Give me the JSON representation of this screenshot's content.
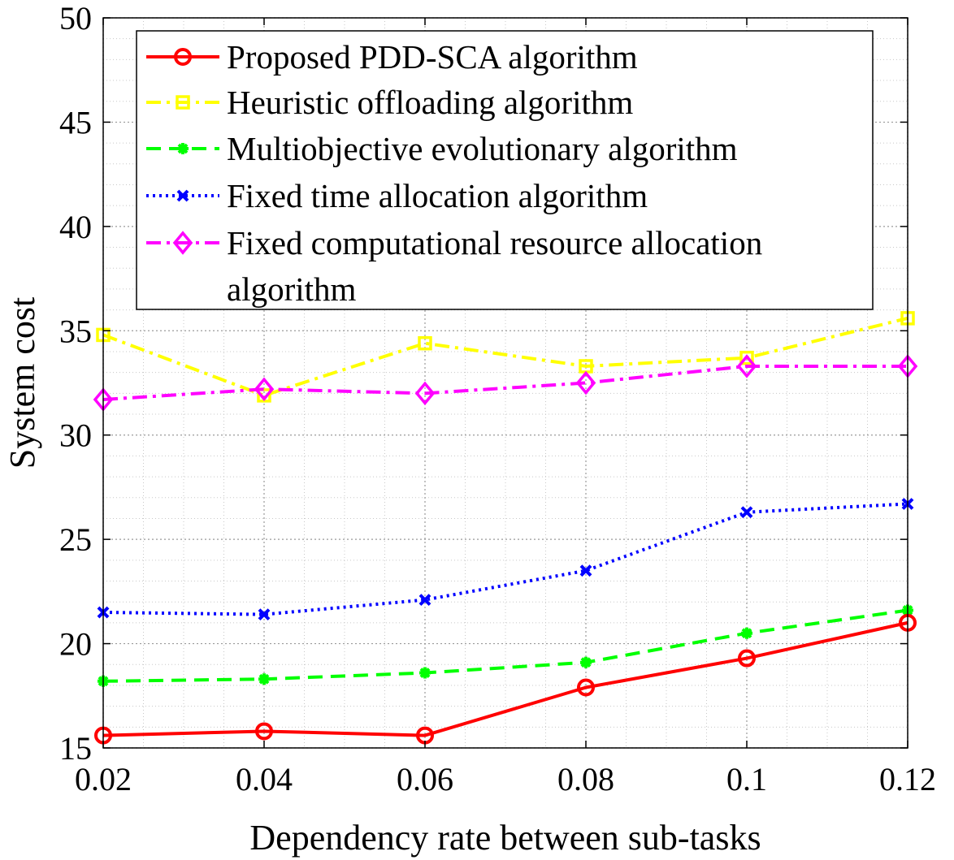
{
  "chart_data": {
    "type": "line",
    "title": "",
    "xlabel": "Dependency rate between sub-tasks",
    "ylabel": "System cost",
    "x": [
      0.02,
      0.04,
      0.06,
      0.08,
      0.1,
      0.12
    ],
    "x_tick_labels": [
      "0.02",
      "0.04",
      "0.06",
      "0.08",
      "0.1",
      "0.12"
    ],
    "xlim": [
      0.02,
      0.12
    ],
    "ylim": [
      15,
      50
    ],
    "y_ticks": [
      15,
      20,
      25,
      30,
      35,
      40,
      45,
      50
    ],
    "y_tick_labels": [
      "15",
      "20",
      "25",
      "30",
      "35",
      "40",
      "45",
      "50"
    ],
    "grid": true,
    "legend_position": "top-right",
    "series": [
      {
        "name": "Proposed PDD-SCA algorithm",
        "legend_lines": [
          "Proposed PDD-SCA algorithm"
        ],
        "values": [
          15.6,
          15.8,
          15.6,
          17.9,
          19.3,
          21.0
        ],
        "color": "#ff0000",
        "line_style": "solid",
        "marker": "circle"
      },
      {
        "name": "Heuristic offloading algorithm",
        "legend_lines": [
          "Heuristic offloading algorithm"
        ],
        "values": [
          34.8,
          31.9,
          34.4,
          33.3,
          33.7,
          35.6
        ],
        "color": "#ffff00",
        "line_style": "dashdot",
        "marker": "square"
      },
      {
        "name": "Multiobjective evolutionary algorithm",
        "legend_lines": [
          "Multiobjective evolutionary algorithm"
        ],
        "values": [
          18.2,
          18.3,
          18.6,
          19.1,
          20.5,
          21.6
        ],
        "color": "#00ff00",
        "line_style": "dashed",
        "marker": "asterisk"
      },
      {
        "name": "Fixed time allocation algorithm",
        "legend_lines": [
          "Fixed time allocation algorithm"
        ],
        "values": [
          21.5,
          21.4,
          22.1,
          23.5,
          26.3,
          26.7
        ],
        "color": "#0000ff",
        "line_style": "dotted",
        "marker": "x"
      },
      {
        "name": "Fixed computational resource allocation algorithm",
        "legend_lines": [
          "Fixed computational resource allocation",
          "algorithm"
        ],
        "values": [
          31.7,
          32.2,
          32.0,
          32.5,
          33.3,
          33.3
        ],
        "color": "#ff00ff",
        "line_style": "dashdot",
        "marker": "diamond"
      }
    ]
  }
}
